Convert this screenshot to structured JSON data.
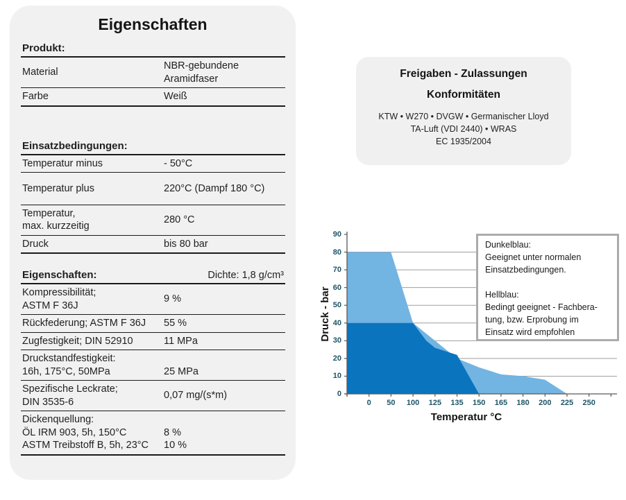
{
  "left_panel": {
    "title": "Eigenschaften",
    "sections": [
      {
        "heading": "Produkt:",
        "heading_right": "",
        "rows": [
          {
            "label_lines": [
              "Material"
            ],
            "value_lines": [
              "NBR-gebundene",
              "Aramidfaser"
            ]
          },
          {
            "label_lines": [
              "Farbe"
            ],
            "value_lines": [
              "Weiß"
            ]
          }
        ]
      },
      {
        "heading": "Einsatzbedingungen:",
        "heading_right": "",
        "rows": [
          {
            "label_lines": [
              "Temperatur minus"
            ],
            "value_lines": [
              "- 50°C"
            ]
          },
          {
            "label_lines": [
              "Temperatur plus"
            ],
            "value_lines": [
              "220°C (Dampf 180 °C)"
            ],
            "tall": true
          },
          {
            "label_lines": [
              "Temperatur,",
              "max. kurzzeitig"
            ],
            "value_lines": [
              "280 °C"
            ]
          },
          {
            "label_lines": [
              "Druck"
            ],
            "value_lines": [
              "bis 80 bar"
            ]
          }
        ]
      },
      {
        "heading": "Eigenschaften:",
        "heading_right": "Dichte: 1,8 g/cm³",
        "rows": [
          {
            "label_lines": [
              "Kompressibilität;",
              "ASTM F 36J"
            ],
            "value_lines": [
              "9 %"
            ]
          },
          {
            "label_lines": [
              "Rückfederung; ASTM F 36J"
            ],
            "value_lines": [
              "55 %"
            ]
          },
          {
            "label_lines": [
              "Zugfestigkeit; DIN 52910"
            ],
            "value_lines": [
              "11 MPa"
            ]
          },
          {
            "label_lines": [
              "Druckstandfestigkeit:",
              "16h, 175°C, 50MPa"
            ],
            "value_lines": [
              "",
              "25 MPa"
            ]
          },
          {
            "label_lines": [
              "Spezifische Leckrate;",
              "DIN 3535-6"
            ],
            "value_lines": [
              "0,07 mg/(s*m)"
            ]
          },
          {
            "label_lines": [
              "Dickenquellung:",
              "ÖL IRM 903, 5h, 150°C",
              "ASTM Treibstoff B, 5h, 23°C"
            ],
            "value_lines": [
              "",
              "8 %",
              "10 %"
            ]
          }
        ]
      }
    ]
  },
  "right_panel": {
    "title_lines": [
      "Freigaben - Zulassungen",
      "Konformitäten"
    ],
    "body_lines": [
      "KTW • W270 • DVGW • Germanischer Lloyd",
      "TA-Luft (VDI 2440) • WRAS",
      "EC 1935/2004"
    ]
  },
  "chart_data": {
    "type": "area",
    "title": "",
    "xlabel": "Temperatur °C",
    "ylabel": "Druck - bar",
    "ylim": [
      0,
      90
    ],
    "y_tick_step": 10,
    "grid": "horizontal",
    "x_axis_note": "category axis; area begins one unlabeled slot left of first tick",
    "x_slot_values": [
      -50,
      0,
      50,
      100,
      125,
      135,
      150,
      165,
      180,
      200,
      225,
      250
    ],
    "x_tick_labels": [
      "0",
      "50",
      "100",
      "125",
      "135",
      "150",
      "165",
      "180",
      "200",
      "225",
      "250"
    ],
    "series": [
      {
        "name": "Hellblau",
        "meaning": "Bedingt geeignet - Fachberatung, bzw. Erprobung im Einsatz wird empfohlen",
        "color": "#72B4E2",
        "temp_c": [
          -50,
          50,
          100,
          135,
          150,
          165,
          180,
          200,
          225
        ],
        "druck_bar": [
          80,
          80,
          40,
          20,
          15,
          11,
          10,
          8,
          0
        ]
      },
      {
        "name": "Dunkelblau",
        "meaning": "Geeignet unter normalen Einsatzbedingungen.",
        "color": "#0B74BE",
        "temp_c": [
          -50,
          100,
          115,
          125,
          135,
          150
        ],
        "druck_bar": [
          40,
          40,
          30,
          26,
          22,
          0
        ]
      }
    ],
    "legend_lines": [
      "Dunkelblau:",
      "Geeignet unter normalen",
      "Einsatzbedingungen.",
      "",
      "Hellblau:",
      "Bedingt geeignet - Fachbera-",
      "tung, bzw. Erprobung im",
      "Einsatz wird empfohlen"
    ]
  },
  "colors": {
    "dark_blue": "#0B74BE",
    "light_blue": "#72B4E2",
    "panel_bg": "#F1F1F2",
    "grid_line": "#9E9E9E",
    "axis_line": "#595959",
    "tick_label": "#1D5466",
    "legend_border": "#ABABAB"
  }
}
